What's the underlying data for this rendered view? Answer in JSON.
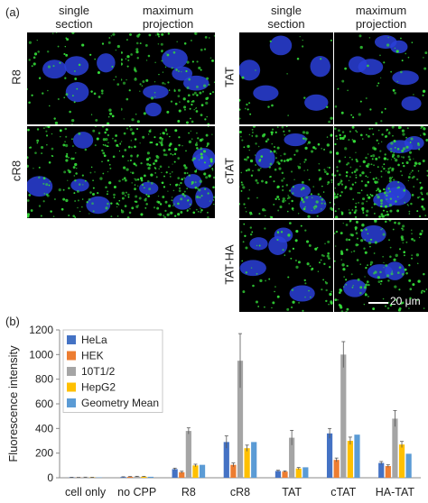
{
  "panel_a": {
    "letter": "(a)",
    "left_group": {
      "col_heads": [
        "single\nsection",
        "maximum\nprojection"
      ],
      "rows": [
        {
          "label": "R8"
        },
        {
          "label": "cR8"
        }
      ]
    },
    "right_group": {
      "col_heads": [
        "single\nsection",
        "maximum\nprojection"
      ],
      "rows": [
        {
          "label": "TAT"
        },
        {
          "label": "cTAT"
        },
        {
          "label": "TAT-HA"
        }
      ]
    },
    "scale_bar_label": "20 μm",
    "colors": {
      "nuclei": "#2a3fd8",
      "signal": "#35e03a",
      "background": "#000000"
    }
  },
  "panel_b": {
    "letter": "(b)"
  },
  "chart_data": {
    "type": "bar",
    "title": "",
    "xlabel": "",
    "ylabel": "Fluorescence intensity",
    "ylim": [
      0,
      1200
    ],
    "yticks": [
      0,
      200,
      400,
      600,
      800,
      1000,
      1200
    ],
    "grid": false,
    "legend_position": "top-left",
    "categories": [
      "cell only",
      "no CPP",
      "R8",
      "cR8",
      "TAT",
      "cTAT",
      "HA-TAT"
    ],
    "series": [
      {
        "name": "HeLa",
        "color": "#4472C4",
        "values": [
          3,
          6,
          70,
          290,
          55,
          360,
          120
        ],
        "errors": [
          1,
          2,
          8,
          50,
          6,
          40,
          12
        ]
      },
      {
        "name": "HEK",
        "color": "#ED7D31",
        "values": [
          2,
          8,
          45,
          105,
          50,
          145,
          95
        ],
        "errors": [
          1,
          2,
          8,
          15,
          6,
          15,
          10
        ]
      },
      {
        "name": "10T1/2",
        "color": "#A5A5A5",
        "values": [
          4,
          10,
          380,
          950,
          325,
          1000,
          480
        ],
        "errors": [
          1,
          2,
          25,
          220,
          60,
          105,
          65
        ]
      },
      {
        "name": "HepG2",
        "color": "#FFC000",
        "values": [
          3,
          9,
          100,
          240,
          75,
          300,
          270
        ],
        "errors": [
          1,
          2,
          10,
          25,
          8,
          30,
          25
        ]
      },
      {
        "name": "Geometry Mean",
        "color": "#5B9BD5",
        "values": [
          3,
          8,
          105,
          290,
          85,
          350,
          195
        ],
        "errors": [
          0,
          0,
          0,
          0,
          0,
          0,
          0
        ]
      }
    ]
  }
}
